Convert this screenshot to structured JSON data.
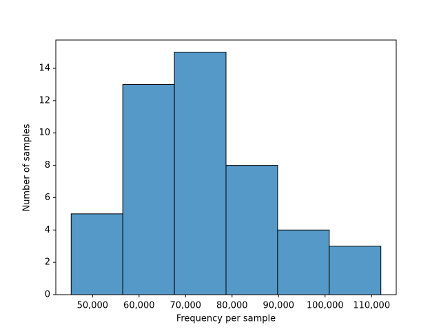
{
  "chart_data": {
    "type": "histogram",
    "xlabel": "Frequency per sample",
    "ylabel": "Number of samples",
    "bins": [
      45400,
      56500,
      67600,
      78700,
      89800,
      100900,
      112000
    ],
    "values": [
      5,
      13,
      15,
      8,
      4,
      3
    ],
    "color": "#5599c8",
    "edgecolor": "#000000",
    "xlim": [
      42100,
      115300
    ],
    "ylim": [
      0,
      15.75
    ],
    "xticks": [
      {
        "value": 50000,
        "label": "50,000"
      },
      {
        "value": 60000,
        "label": "60,000"
      },
      {
        "value": 70000,
        "label": "70,000"
      },
      {
        "value": 80000,
        "label": "80,000"
      },
      {
        "value": 90000,
        "label": "90,000"
      },
      {
        "value": 100000,
        "label": "100,000"
      },
      {
        "value": 110000,
        "label": "110,000"
      }
    ],
    "yticks": [
      0,
      2,
      4,
      6,
      8,
      10,
      12,
      14
    ]
  }
}
